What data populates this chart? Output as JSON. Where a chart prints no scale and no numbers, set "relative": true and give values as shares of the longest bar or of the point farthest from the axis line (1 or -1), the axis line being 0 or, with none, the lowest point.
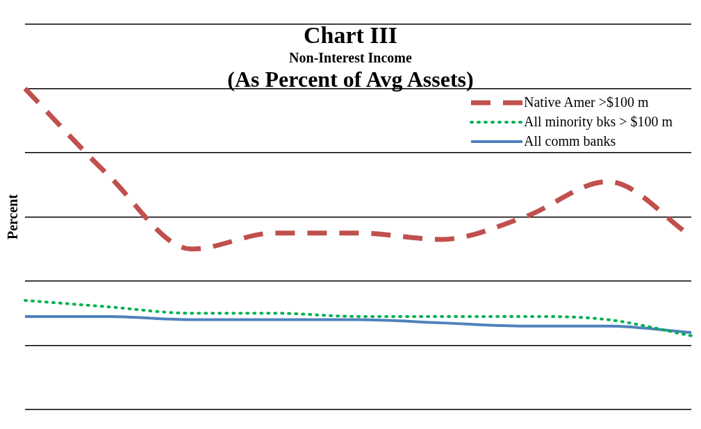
{
  "chart_data": {
    "type": "line",
    "title": "Chart III",
    "subtitle": "Non-Interest Income",
    "annotations": [
      "(As Percent of Avg Assets)"
    ],
    "ylabel": "Percent",
    "relative": true,
    "grid": "y",
    "legend": "right",
    "marker": "none",
    "categories": [
      null,
      null,
      null,
      null,
      null,
      null,
      null,
      null,
      null
    ],
    "series": [
      {
        "name": "Native Amer >$100 m",
        "color": "#c0504d",
        "line_style": "dashed",
        "values": [
          1.0,
          0.73,
          0.5,
          0.55,
          0.55,
          0.53,
          0.6,
          0.71,
          0.54
        ]
      },
      {
        "name": "All minority bks > $100 m",
        "color": "#00b050",
        "line_style": "dotted",
        "values": [
          0.34,
          0.32,
          0.3,
          0.3,
          0.29,
          0.29,
          0.29,
          0.28,
          0.23
        ]
      },
      {
        "name": "All comm banks",
        "color": "#4f81bd",
        "line_style": "solid",
        "values": [
          0.29,
          0.29,
          0.28,
          0.28,
          0.28,
          0.27,
          0.26,
          0.26,
          0.24
        ]
      }
    ]
  }
}
